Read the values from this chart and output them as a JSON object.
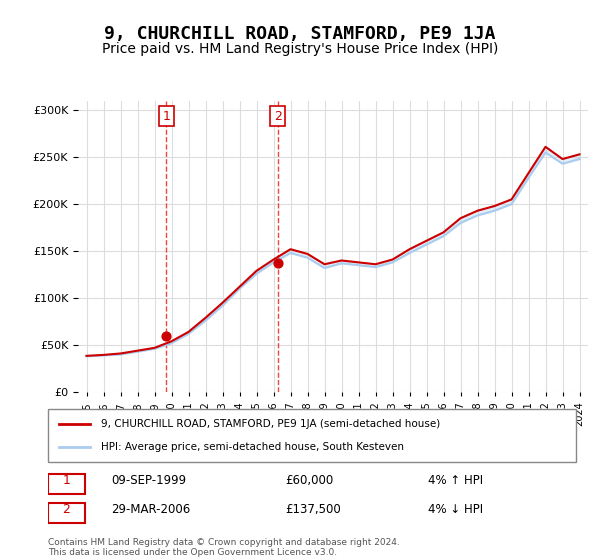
{
  "title": "9, CHURCHILL ROAD, STAMFORD, PE9 1JA",
  "subtitle": "Price paid vs. HM Land Registry's House Price Index (HPI)",
  "title_fontsize": 13,
  "subtitle_fontsize": 10,
  "background_color": "#ffffff",
  "plot_background_color": "#ffffff",
  "grid_color": "#dddddd",
  "hpi_color": "#aaccee",
  "price_color": "#cc0000",
  "marker_color": "#cc0000",
  "vline_color": "#ee4444",
  "transaction1_year": 1999.7,
  "transaction1_price": 60000,
  "transaction1_label": "1",
  "transaction1_date": "09-SEP-1999",
  "transaction1_pct": "4% ↑ HPI",
  "transaction2_year": 2006.25,
  "transaction2_price": 137500,
  "transaction2_label": "2",
  "transaction2_date": "29-MAR-2006",
  "transaction2_pct": "4% ↓ HPI",
  "legend_text1": "9, CHURCHILL ROAD, STAMFORD, PE9 1JA (semi-detached house)",
  "legend_text2": "HPI: Average price, semi-detached house, South Kesteven",
  "footer": "Contains HM Land Registry data © Crown copyright and database right 2024.\nThis data is licensed under the Open Government Licence v3.0.",
  "ylim": [
    0,
    310000
  ],
  "yticks": [
    0,
    50000,
    100000,
    150000,
    200000,
    250000,
    300000
  ],
  "years": [
    1995,
    1996,
    1997,
    1998,
    1999,
    2000,
    2001,
    2002,
    2003,
    2004,
    2005,
    2006,
    2007,
    2008,
    2009,
    2010,
    2011,
    2012,
    2013,
    2014,
    2015,
    2016,
    2017,
    2018,
    2019,
    2020,
    2021,
    2022,
    2023,
    2024
  ],
  "hpi_values": [
    38000,
    39000,
    40000,
    43000,
    46000,
    52000,
    62000,
    76000,
    92000,
    110000,
    126000,
    138000,
    148000,
    143000,
    132000,
    137000,
    135000,
    133000,
    138000,
    148000,
    157000,
    166000,
    180000,
    188000,
    193000,
    200000,
    228000,
    255000,
    243000,
    248000
  ],
  "price_values": [
    38500,
    39500,
    41000,
    44000,
    47000,
    54000,
    64000,
    79000,
    95000,
    112000,
    129000,
    141000,
    152000,
    147000,
    136000,
    140000,
    138000,
    136000,
    141000,
    152000,
    161000,
    170000,
    185000,
    193000,
    198000,
    205000,
    233000,
    261000,
    248000,
    253000
  ]
}
